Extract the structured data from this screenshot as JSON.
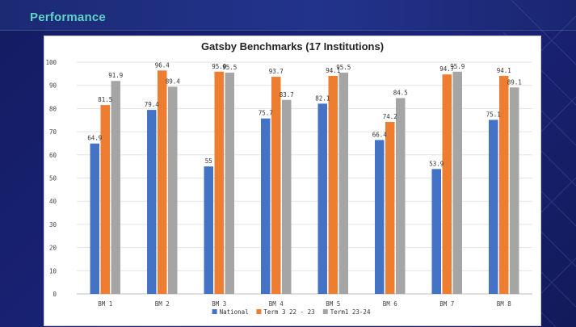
{
  "header": {
    "title": "Performance"
  },
  "colors": {
    "accent": "#5fd3c8",
    "background": "#121a5c"
  },
  "chart_data": {
    "type": "bar",
    "title": "Gatsby Benchmarks (17 Institutions)",
    "categories": [
      "BM 1",
      "BM 2",
      "BM 3",
      "BM 4",
      "BM 5",
      "BM 6",
      "BM 7",
      "BM 8"
    ],
    "series": [
      {
        "name": "National",
        "color": "#4472c4",
        "values": [
          64.9,
          79.4,
          55,
          75.7,
          82.1,
          66.4,
          53.9,
          75.1
        ],
        "labels": [
          "64.9",
          "79.4",
          "55",
          "75.7",
          "82.1",
          "66.4",
          "53.9",
          "75.1"
        ]
      },
      {
        "name": "Term 3 22 - 23",
        "color": "#ed7d31",
        "values": [
          81.5,
          96.4,
          95.9,
          93.7,
          94.1,
          74.2,
          94.7,
          94.1
        ],
        "labels": [
          "81.5",
          "96.4",
          "95.9",
          "93.7",
          "94.1",
          "74.2",
          "94.7",
          "94.1"
        ]
      },
      {
        "name": "Term1 23-24",
        "color": "#a5a5a5",
        "values": [
          91.9,
          89.4,
          95.5,
          83.7,
          95.5,
          84.5,
          95.9,
          89.1
        ],
        "labels": [
          "91.9",
          "89.4",
          "95.5",
          "83.7",
          "95.5",
          "84.5",
          "95.9",
          "89.1"
        ]
      }
    ],
    "ylim": [
      0,
      100
    ],
    "yticks": [
      "0",
      "10",
      "20",
      "30",
      "40",
      "50",
      "60",
      "70",
      "80",
      "90",
      "100"
    ],
    "xlabel": "",
    "ylabel": "",
    "grid": true,
    "legend": "bottom"
  }
}
